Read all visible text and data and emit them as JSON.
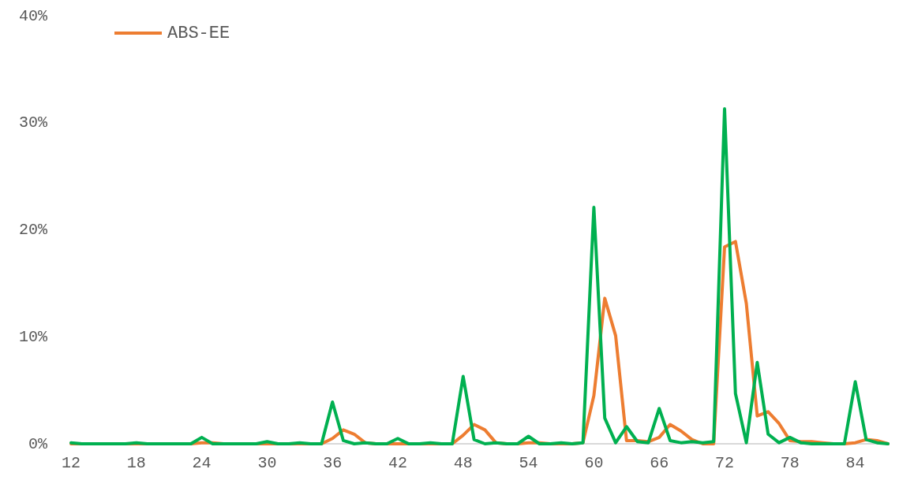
{
  "chart_data": {
    "type": "line",
    "x": [
      12,
      13,
      14,
      15,
      16,
      17,
      18,
      19,
      20,
      21,
      22,
      23,
      24,
      25,
      26,
      27,
      28,
      29,
      30,
      31,
      32,
      33,
      34,
      35,
      36,
      37,
      38,
      39,
      40,
      41,
      42,
      43,
      44,
      45,
      46,
      47,
      48,
      49,
      50,
      51,
      52,
      53,
      54,
      55,
      56,
      57,
      58,
      59,
      60,
      61,
      62,
      63,
      64,
      65,
      66,
      67,
      68,
      69,
      70,
      71,
      72,
      73,
      74,
      75,
      76,
      77,
      78,
      79,
      80,
      81,
      82,
      83,
      84,
      85,
      86,
      87
    ],
    "series": [
      {
        "name": "ABS-EE",
        "color": "#ed7d31",
        "values": [
          0.0,
          0.0,
          0.0,
          0.0,
          0.0,
          0.0,
          0.0,
          0.0,
          0.0,
          0.0,
          0.0,
          0.0,
          0.1,
          0.1,
          0.0,
          0.0,
          0.0,
          0.0,
          0.0,
          0.0,
          0.0,
          0.0,
          0.0,
          0.0,
          0.5,
          1.3,
          0.9,
          0.1,
          0.0,
          0.0,
          0.0,
          0.0,
          0.0,
          0.0,
          0.0,
          0.0,
          0.8,
          1.8,
          1.3,
          0.1,
          0.0,
          0.0,
          0.1,
          0.1,
          0.0,
          0.0,
          0.0,
          0.1,
          4.5,
          13.6,
          10.1,
          0.3,
          0.3,
          0.2,
          0.6,
          1.8,
          1.2,
          0.4,
          0.0,
          0.0,
          18.4,
          18.9,
          13.1,
          2.6,
          3.0,
          1.9,
          0.3,
          0.2,
          0.2,
          0.1,
          0.0,
          0.0,
          0.1,
          0.4,
          0.3,
          0.0
        ]
      },
      {
        "color": "#00b050",
        "values": [
          0.1,
          0.0,
          0.0,
          0.0,
          0.0,
          0.0,
          0.1,
          0.0,
          0.0,
          0.0,
          0.0,
          0.0,
          0.6,
          0.0,
          0.0,
          0.0,
          0.0,
          0.0,
          0.2,
          0.0,
          0.0,
          0.1,
          0.0,
          0.0,
          3.9,
          0.3,
          0.0,
          0.1,
          0.0,
          0.0,
          0.5,
          0.0,
          0.0,
          0.1,
          0.0,
          0.0,
          6.3,
          0.4,
          0.0,
          0.1,
          0.0,
          0.0,
          0.7,
          0.0,
          0.0,
          0.1,
          0.0,
          0.1,
          22.1,
          2.4,
          0.1,
          1.6,
          0.2,
          0.1,
          3.3,
          0.3,
          0.1,
          0.2,
          0.1,
          0.2,
          31.3,
          4.7,
          0.1,
          7.6,
          0.9,
          0.1,
          0.6,
          0.1,
          0.0,
          0.0,
          0.0,
          0.0,
          5.8,
          0.4,
          0.1,
          0.0
        ]
      }
    ],
    "xlim": [
      12,
      87
    ],
    "xticks": [
      12,
      18,
      24,
      30,
      36,
      42,
      48,
      54,
      60,
      66,
      72,
      78,
      84
    ],
    "ylim": [
      0,
      40
    ],
    "yticks": [
      {
        "value": 0,
        "label": "0%"
      },
      {
        "value": 10,
        "label": "10%"
      },
      {
        "value": 20,
        "label": "20%"
      },
      {
        "value": 30,
        "label": "30%"
      },
      {
        "value": 40,
        "label": "40%"
      }
    ],
    "grid": false,
    "legend": "top left",
    "marker": "none",
    "line_style": "solid"
  }
}
